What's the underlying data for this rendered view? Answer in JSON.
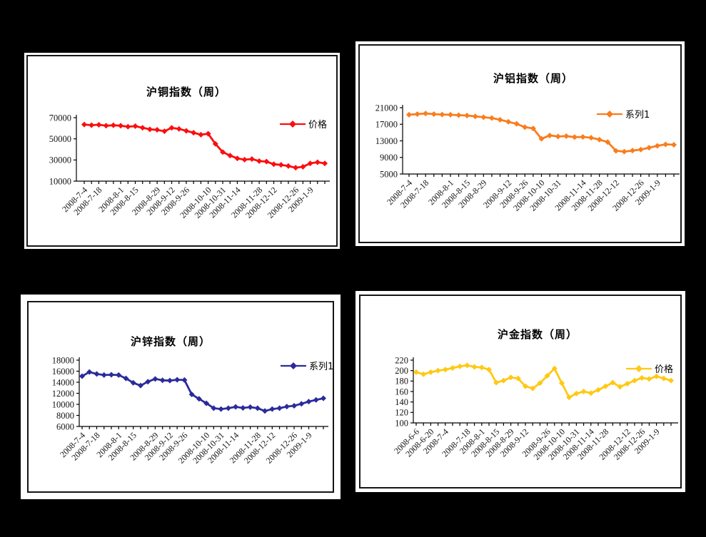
{
  "page": {
    "background_color": "#000000"
  },
  "chart_data": [
    {
      "id": "copper",
      "type": "line",
      "title": "沪铜指数（周）",
      "legend": [
        "价格"
      ],
      "legend_position": "inside-top-right",
      "series_color": "#FB0E0E",
      "grid": false,
      "ylim": [
        10000,
        70000
      ],
      "y_ticks": [
        10000,
        30000,
        50000,
        70000
      ],
      "categories": [
        "2008-7-4",
        "2008-7-18",
        "2008-8-1",
        "2008-8-15",
        "2008-8-29",
        "2008-9-12",
        "2008-9-26",
        "2008-10-10",
        "2008-10-31",
        "2008-11-14",
        "2008-11-28",
        "2008-12-12",
        "2008-12-26",
        "2009-1-9"
      ],
      "values": [
        63500,
        62900,
        63300,
        62400,
        62800,
        62400,
        61500,
        62000,
        60500,
        59000,
        58500,
        57200,
        60400,
        59400,
        57500,
        55800,
        53900,
        54800,
        45200,
        37500,
        34200,
        31500,
        30300,
        30900,
        29000,
        28500,
        26000,
        25400,
        24300,
        22700,
        23600,
        26800,
        27900,
        26800
      ]
    },
    {
      "id": "aluminum",
      "type": "line",
      "title": "沪铝指数（周）",
      "legend": [
        "系列1"
      ],
      "legend_position": "inside-top-right",
      "series_color": "#F97D1C",
      "grid": false,
      "ylim": [
        5000,
        21000
      ],
      "y_ticks": [
        5000,
        9000,
        13000,
        17000,
        21000
      ],
      "categories": [
        "2008-7-4",
        "2008-7-18",
        "2008-8-1",
        "2008-8-15",
        "2008-8-29",
        "2008-9-12",
        "2008-9-26",
        "2008-10-10",
        "2008-10-31",
        "2008-11-14",
        "2008-11-28",
        "2008-12-12",
        "2008-12-26",
        "2009-1-9"
      ],
      "values": [
        19300,
        19450,
        19600,
        19450,
        19350,
        19300,
        19200,
        19100,
        18900,
        18700,
        18500,
        18100,
        17600,
        17100,
        16300,
        16000,
        13500,
        14300,
        14050,
        14150,
        13900,
        13950,
        13750,
        13300,
        12700,
        10600,
        10400,
        10650,
        10900,
        11350,
        11800,
        12150,
        12050
      ]
    },
    {
      "id": "zinc",
      "type": "line",
      "title": "沪锌指数（周）",
      "legend": [
        "系列1"
      ],
      "legend_position": "inside-top-right",
      "series_color": "#2B2B9C",
      "grid": false,
      "ylim": [
        6000,
        18000
      ],
      "y_ticks": [
        6000,
        8000,
        10000,
        12000,
        14000,
        16000,
        18000
      ],
      "categories": [
        "2008-7-4",
        "2008-7-18",
        "2008-8-1",
        "2008-8-15",
        "2008-8-29",
        "2008-9-12",
        "2008-9-26",
        "2008-10-10",
        "2008-10-31",
        "2008-11-14",
        "2008-11-28",
        "2008-12-12",
        "2008-12-26",
        "2009-1-9"
      ],
      "values": [
        15100,
        15850,
        15500,
        15300,
        15350,
        15300,
        14700,
        13900,
        13400,
        14100,
        14600,
        14350,
        14300,
        14450,
        14400,
        11800,
        11000,
        10200,
        9300,
        9150,
        9300,
        9550,
        9350,
        9500,
        9300,
        8800,
        9150,
        9300,
        9600,
        9750,
        10100,
        10500,
        10800,
        11100
      ]
    },
    {
      "id": "gold",
      "type": "line",
      "title": "沪金指数（周）",
      "legend": [
        "价格"
      ],
      "legend_position": "inside-top-right",
      "series_color": "#FFC813",
      "grid": false,
      "ylim": [
        100,
        220
      ],
      "y_ticks": [
        100,
        120,
        140,
        160,
        180,
        200,
        220
      ],
      "categories": [
        "2008-6-6",
        "2008-6-20",
        "2008-7-4",
        "2008-7-18",
        "2008-8-1",
        "2008-8-15",
        "2008-8-29",
        "2008-9-12",
        "2008-9-26",
        "2008-10-10",
        "2008-10-31",
        "2008-11-14",
        "2008-11-28",
        "2008-12-12",
        "2008-12-26",
        "2009-1-9"
      ],
      "values": [
        197,
        193,
        197,
        200,
        202,
        205,
        208,
        210,
        207,
        206,
        202,
        177,
        181,
        187,
        185,
        170,
        166,
        176,
        190,
        204,
        176,
        149,
        156,
        160,
        157,
        163,
        170,
        177,
        169,
        175,
        181,
        186,
        184,
        189,
        185,
        181
      ]
    }
  ]
}
